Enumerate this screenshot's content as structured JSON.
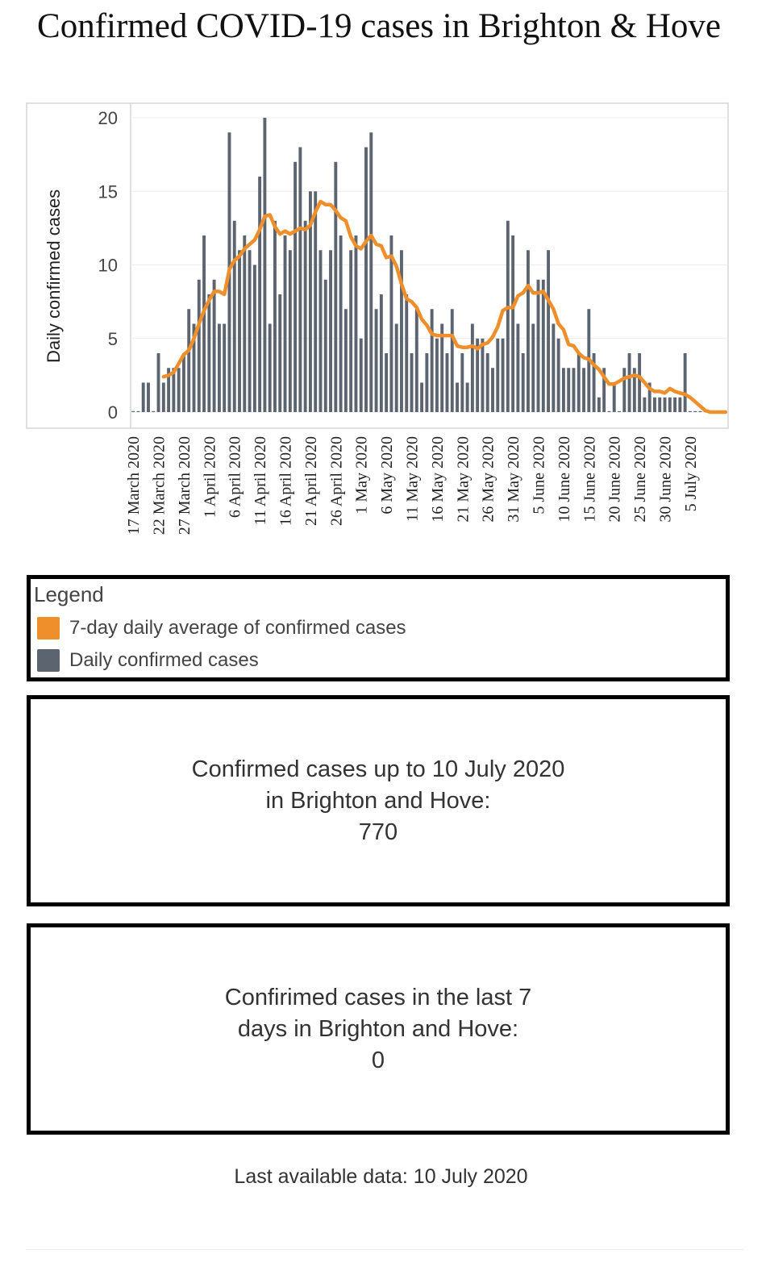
{
  "title": "Confirmed COVID-19 cases in Brighton & Hove",
  "chart_data": {
    "type": "bar",
    "start_date": "17 March 2020",
    "ylabel": "Daily confirmed cases",
    "xlabel": "",
    "ylim": [
      0,
      20
    ],
    "y_ticks": [
      0,
      5,
      10,
      15,
      20
    ],
    "x_tick_labels": [
      "17 March 2020",
      "22 March 2020",
      "27 March 2020",
      "1 April 2020",
      "6 April 2020",
      "11 April 2020",
      "16 April 2020",
      "21 April 2020",
      "26 April 2020",
      "1 May 2020",
      "6 May 2020",
      "11 May 2020",
      "16 May 2020",
      "21 May 2020",
      "26 May 2020",
      "31 May 2020",
      "5 June 2020",
      "10 June 2020",
      "15 June 2020",
      "20 June 2020",
      "25 June 2020",
      "30 June 2020",
      "5 July 2020"
    ],
    "grid": true,
    "series": [
      {
        "name": "Daily confirmed cases",
        "type": "bar",
        "color": "#5c6470",
        "values": [
          0,
          0,
          2,
          2,
          0,
          4,
          2,
          3,
          3,
          3,
          4,
          7,
          6,
          9,
          12,
          8,
          9,
          6,
          6,
          19,
          13,
          11,
          12,
          11,
          10,
          16,
          20,
          6,
          13,
          8,
          12,
          11,
          17,
          18,
          13,
          15,
          15,
          11,
          9,
          11,
          17,
          12,
          7,
          11,
          12,
          5,
          18,
          19,
          7,
          8,
          4,
          12,
          6,
          11,
          8,
          4,
          7,
          2,
          4,
          7,
          5,
          6,
          4,
          7,
          2,
          4,
          2,
          6,
          5,
          5,
          4,
          3,
          5,
          5,
          13,
          12,
          6,
          4,
          11,
          6,
          9,
          9,
          11,
          6,
          5,
          3,
          3,
          3,
          4,
          3,
          7,
          4,
          1,
          3,
          0,
          2,
          0,
          3,
          4,
          3,
          4,
          1,
          2,
          1,
          1,
          1,
          1,
          1,
          1,
          4,
          0,
          0,
          0,
          0,
          0,
          0,
          0,
          0
        ]
      },
      {
        "name": "7-day daily average of confirmed cases",
        "type": "line",
        "color": "#ef8f2b",
        "values": [
          null,
          null,
          null,
          null,
          null,
          null,
          2.4,
          2.5,
          2.7,
          3.3,
          3.9,
          4.2,
          5.0,
          6.0,
          6.9,
          7.6,
          8.2,
          8.2,
          8.0,
          9.7,
          10.3,
          10.6,
          11.1,
          11.4,
          11.7,
          12.4,
          13.3,
          13.4,
          12.6,
          12.1,
          12.3,
          12.1,
          12.3,
          12.5,
          12.4,
          12.7,
          13.6,
          14.3,
          14.1,
          14.1,
          13.7,
          13.2,
          13.0,
          11.9,
          11.3,
          11.1,
          11.6,
          12.0,
          11.4,
          11.3,
          10.5,
          10.6,
          9.9,
          8.7,
          7.7,
          7.5,
          7.1,
          6.3,
          5.9,
          5.3,
          5.2,
          5.2,
          5.2,
          5.2,
          4.5,
          4.4,
          4.4,
          4.5,
          4.3,
          4.6,
          4.7,
          5.1,
          5.8,
          6.9,
          7.1,
          7.1,
          7.9,
          8.1,
          8.6,
          8.1,
          8.1,
          8.2,
          7.6,
          7.0,
          6.0,
          5.6,
          4.6,
          4.5,
          4.0,
          3.7,
          3.6,
          3.2,
          2.9,
          2.4,
          1.9,
          1.9,
          2.1,
          2.3,
          2.4,
          2.5,
          2.4,
          2.0,
          1.6,
          1.4,
          1.4,
          1.3,
          1.6,
          1.4,
          1.3,
          1.2,
          1.0,
          0.7,
          0.4,
          0.1,
          0.0,
          0.0,
          0.0,
          0.0
        ]
      }
    ]
  },
  "legend": {
    "title": "Legend",
    "items": [
      {
        "label": "7-day daily average of confirmed cases",
        "color": "#ef8f2b"
      },
      {
        "label": "Daily confirmed cases",
        "color": "#5c6470"
      }
    ]
  },
  "stats": {
    "total": {
      "line1": "Confirmed cases up to 10 July 2020",
      "line2": "in Brighton and Hove:",
      "value": "770"
    },
    "last7": {
      "line1": "Confirimed cases in the last 7",
      "line2": "days in Brighton and Hove:",
      "value": "0"
    }
  },
  "footer": {
    "last_data": "Last available data: 10 July 2020"
  }
}
